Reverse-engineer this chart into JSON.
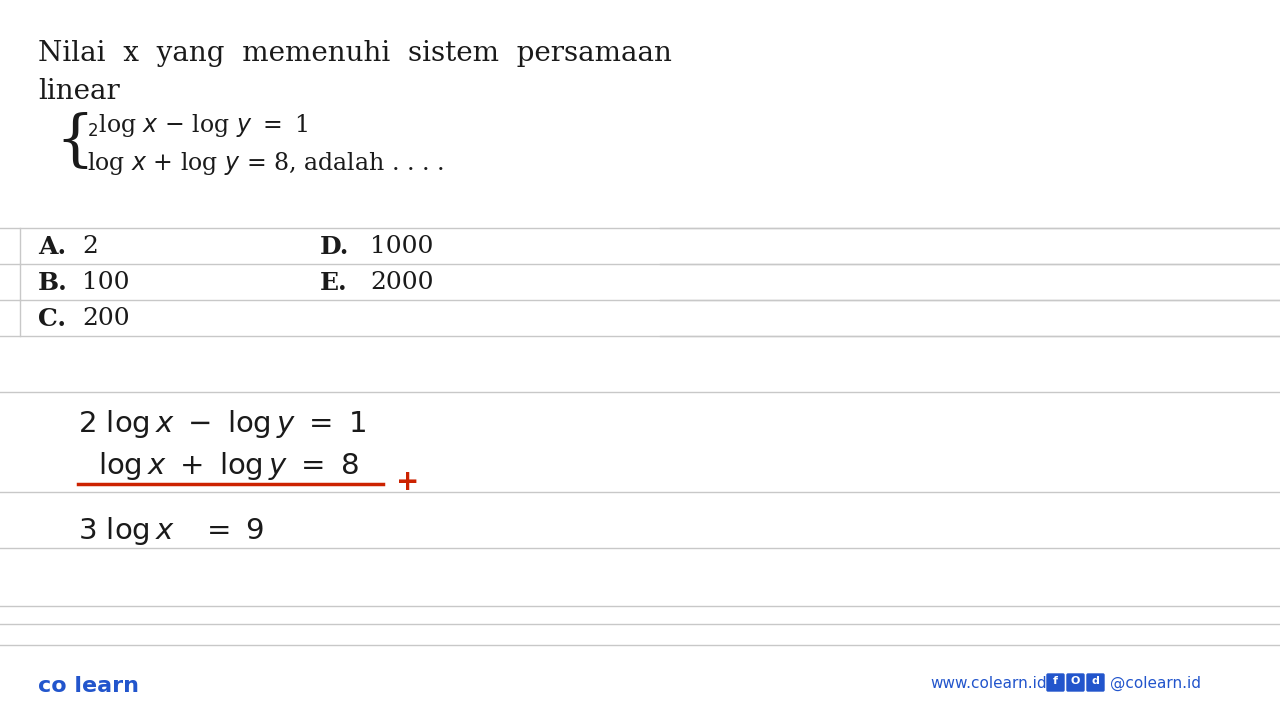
{
  "bg_color": "#f2f2f2",
  "content_bg": "#ffffff",
  "title_line1": "Nilai  x  yang  memenuhi  sistem  persamaan",
  "title_line2": "linear",
  "font_color": "#1a1a1a",
  "sep_line_color": "#c8c8c8",
  "red_color": "#cc2200",
  "footer_color": "#2255cc",
  "footer_left": "co learn",
  "footer_website": "www.colearn.id",
  "footer_social": "@colearn.id",
  "icon_labels": [
    "f",
    "O",
    "d"
  ],
  "icon_color": "#2255cc"
}
